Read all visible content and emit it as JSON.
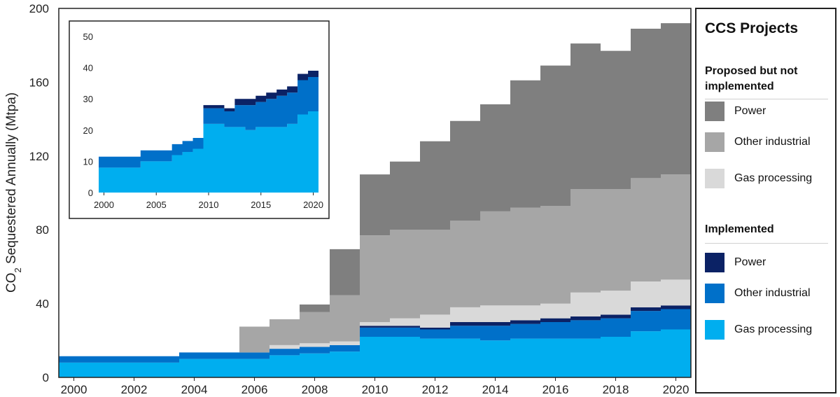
{
  "chart_data": [
    {
      "type": "area",
      "step": true,
      "ylabel_prefix": "CO",
      "ylabel_sub": "2",
      "ylabel_rest": " Sequestered Annually (Mtpa)",
      "xlim": [
        1999.5,
        2020.5
      ],
      "ylim": [
        0,
        200
      ],
      "xticks": [
        2000,
        2002,
        2004,
        2006,
        2008,
        2010,
        2012,
        2014,
        2016,
        2018,
        2020
      ],
      "yticks": [
        0,
        40,
        80,
        120,
        160,
        200
      ],
      "x": [
        2000,
        2001,
        2002,
        2003,
        2004,
        2005,
        2006,
        2007,
        2008,
        2009,
        2010,
        2011,
        2012,
        2013,
        2014,
        2015,
        2016,
        2017,
        2018,
        2019,
        2020
      ],
      "series": [
        {
          "name": "Gas processing",
          "group": "Implemented",
          "color": "#00aeef",
          "values": [
            8,
            8,
            8,
            8,
            10,
            10,
            10,
            12,
            13,
            14,
            22,
            22,
            21,
            21,
            20,
            21,
            21,
            21,
            22,
            25,
            26
          ]
        },
        {
          "name": "Other industrial",
          "group": "Implemented",
          "color": "#0070c9",
          "values": [
            3.5,
            3.5,
            3.5,
            3.5,
            3.5,
            3.5,
            3.5,
            3.5,
            3.5,
            3.5,
            5,
            5,
            5,
            7,
            8,
            8,
            9,
            10,
            10,
            11,
            11
          ]
        },
        {
          "name": "Power",
          "group": "Implemented",
          "color": "#0b2265",
          "values": [
            0,
            0,
            0,
            0,
            0,
            0,
            0,
            0,
            0,
            0,
            1,
            1,
            1,
            2,
            2,
            2,
            2,
            2,
            2,
            2,
            2
          ]
        },
        {
          "name": "Gas processing",
          "group": "Proposed but not implemented",
          "color": "#d9d9d9",
          "values": [
            0,
            0,
            0,
            0,
            0,
            0,
            0,
            2,
            2,
            2,
            2,
            4,
            7,
            8,
            9,
            8,
            8,
            13,
            13,
            14,
            14
          ]
        },
        {
          "name": "Other industrial",
          "group": "Proposed but not implemented",
          "color": "#a6a6a6",
          "values": [
            0,
            0,
            0,
            0,
            0,
            0,
            14,
            14,
            17,
            25,
            47,
            48,
            46,
            47,
            51,
            53,
            53,
            56,
            55,
            56,
            57
          ]
        },
        {
          "name": "Power",
          "group": "Proposed but not implemented",
          "color": "#7f7f7f",
          "values": [
            0,
            0,
            0,
            0,
            0,
            0,
            0,
            0,
            4,
            25,
            33,
            37,
            48,
            54,
            58,
            69,
            76,
            79,
            75,
            81,
            82
          ]
        }
      ]
    },
    {
      "type": "area",
      "step": true,
      "inset": true,
      "xlim": [
        1999.5,
        2020.5
      ],
      "ylim": [
        0,
        50
      ],
      "xticks": [
        2000,
        2005,
        2010,
        2015,
        2020
      ],
      "yticks": [
        0,
        10,
        20,
        30,
        40,
        50
      ],
      "x": [
        2000,
        2001,
        2002,
        2003,
        2004,
        2005,
        2006,
        2007,
        2008,
        2009,
        2010,
        2011,
        2012,
        2013,
        2014,
        2015,
        2016,
        2017,
        2018,
        2019,
        2020
      ],
      "series": [
        {
          "name": "Gas processing",
          "color": "#00aeef",
          "values": [
            8,
            8,
            8,
            8,
            10,
            10,
            10,
            12,
            13,
            14,
            22,
            22,
            21,
            21,
            20,
            21,
            21,
            21,
            22,
            25,
            26
          ]
        },
        {
          "name": "Other industrial",
          "color": "#0070c9",
          "values": [
            3.5,
            3.5,
            3.5,
            3.5,
            3.5,
            3.5,
            3.5,
            3.5,
            3.5,
            3.5,
            5,
            5,
            5,
            7,
            8,
            8,
            9,
            10,
            10,
            11,
            11
          ]
        },
        {
          "name": "Power",
          "color": "#0b2265",
          "values": [
            0,
            0,
            0,
            0,
            0,
            0,
            0,
            0,
            0,
            0,
            1,
            1,
            1,
            2,
            2,
            2,
            2,
            2,
            2,
            2,
            2
          ]
        }
      ]
    }
  ],
  "legend": {
    "title": "CCS Projects",
    "position": "right",
    "groups": [
      {
        "heading": "Proposed but not implemented",
        "items": [
          {
            "label": "Power",
            "color": "#7f7f7f"
          },
          {
            "label": "Other industrial",
            "color": "#a6a6a6"
          },
          {
            "label": "Gas processing",
            "color": "#d9d9d9"
          }
        ]
      },
      {
        "heading": "Implemented",
        "items": [
          {
            "label": "Power",
            "color": "#0b2265"
          },
          {
            "label": "Other industrial",
            "color": "#0070c9"
          },
          {
            "label": "Gas processing",
            "color": "#00aeef"
          }
        ]
      }
    ]
  }
}
